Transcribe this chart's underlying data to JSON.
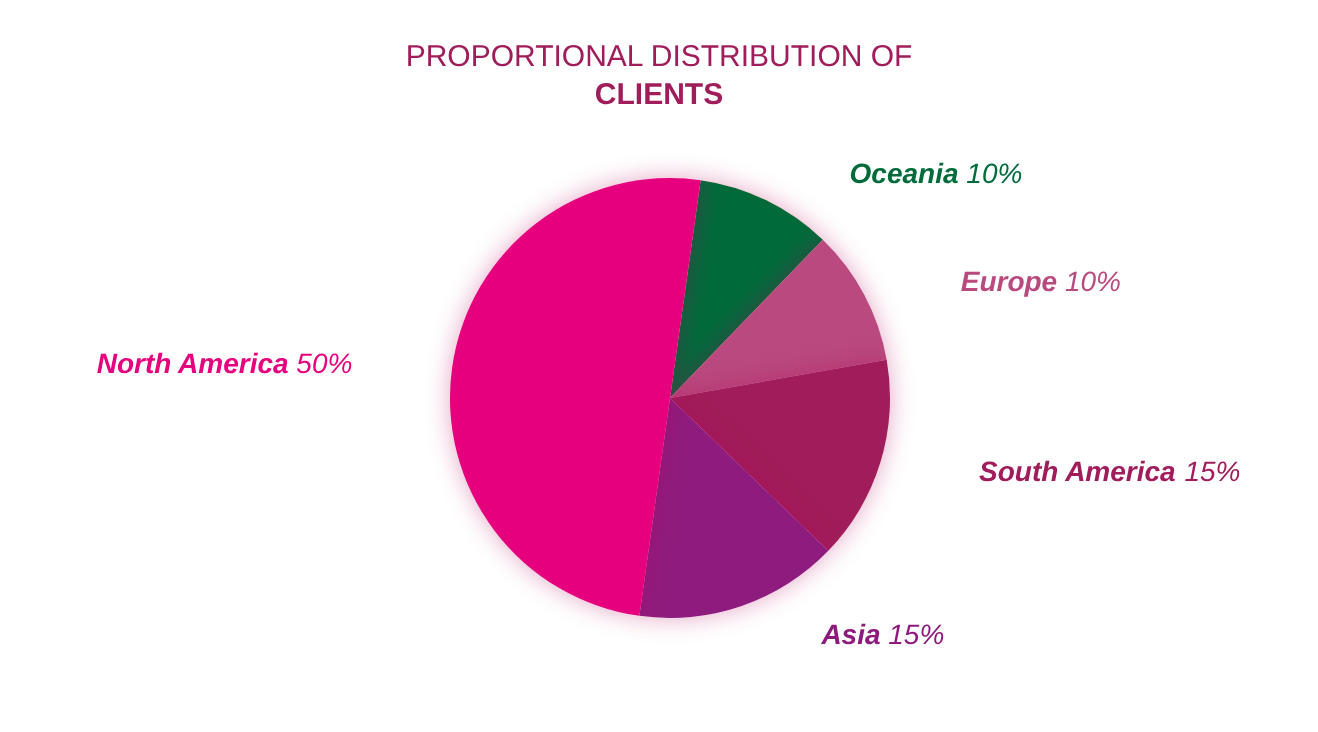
{
  "chart_data": {
    "type": "pie",
    "title": "PROPORTIONAL DISTRIBUTION OF",
    "subtitle": "CLIENTS",
    "categories": [
      "Oceania",
      "Europe",
      "South America",
      "Asia",
      "North America"
    ],
    "values": [
      10,
      10,
      15,
      15,
      50
    ],
    "value_labels": [
      "10%",
      "10%",
      "15%",
      "15%",
      "50%"
    ],
    "colors": [
      "#006b3a",
      "#b94a7e",
      "#a01c5a",
      "#8e1a7e",
      "#e6007e"
    ],
    "legend": false
  }
}
